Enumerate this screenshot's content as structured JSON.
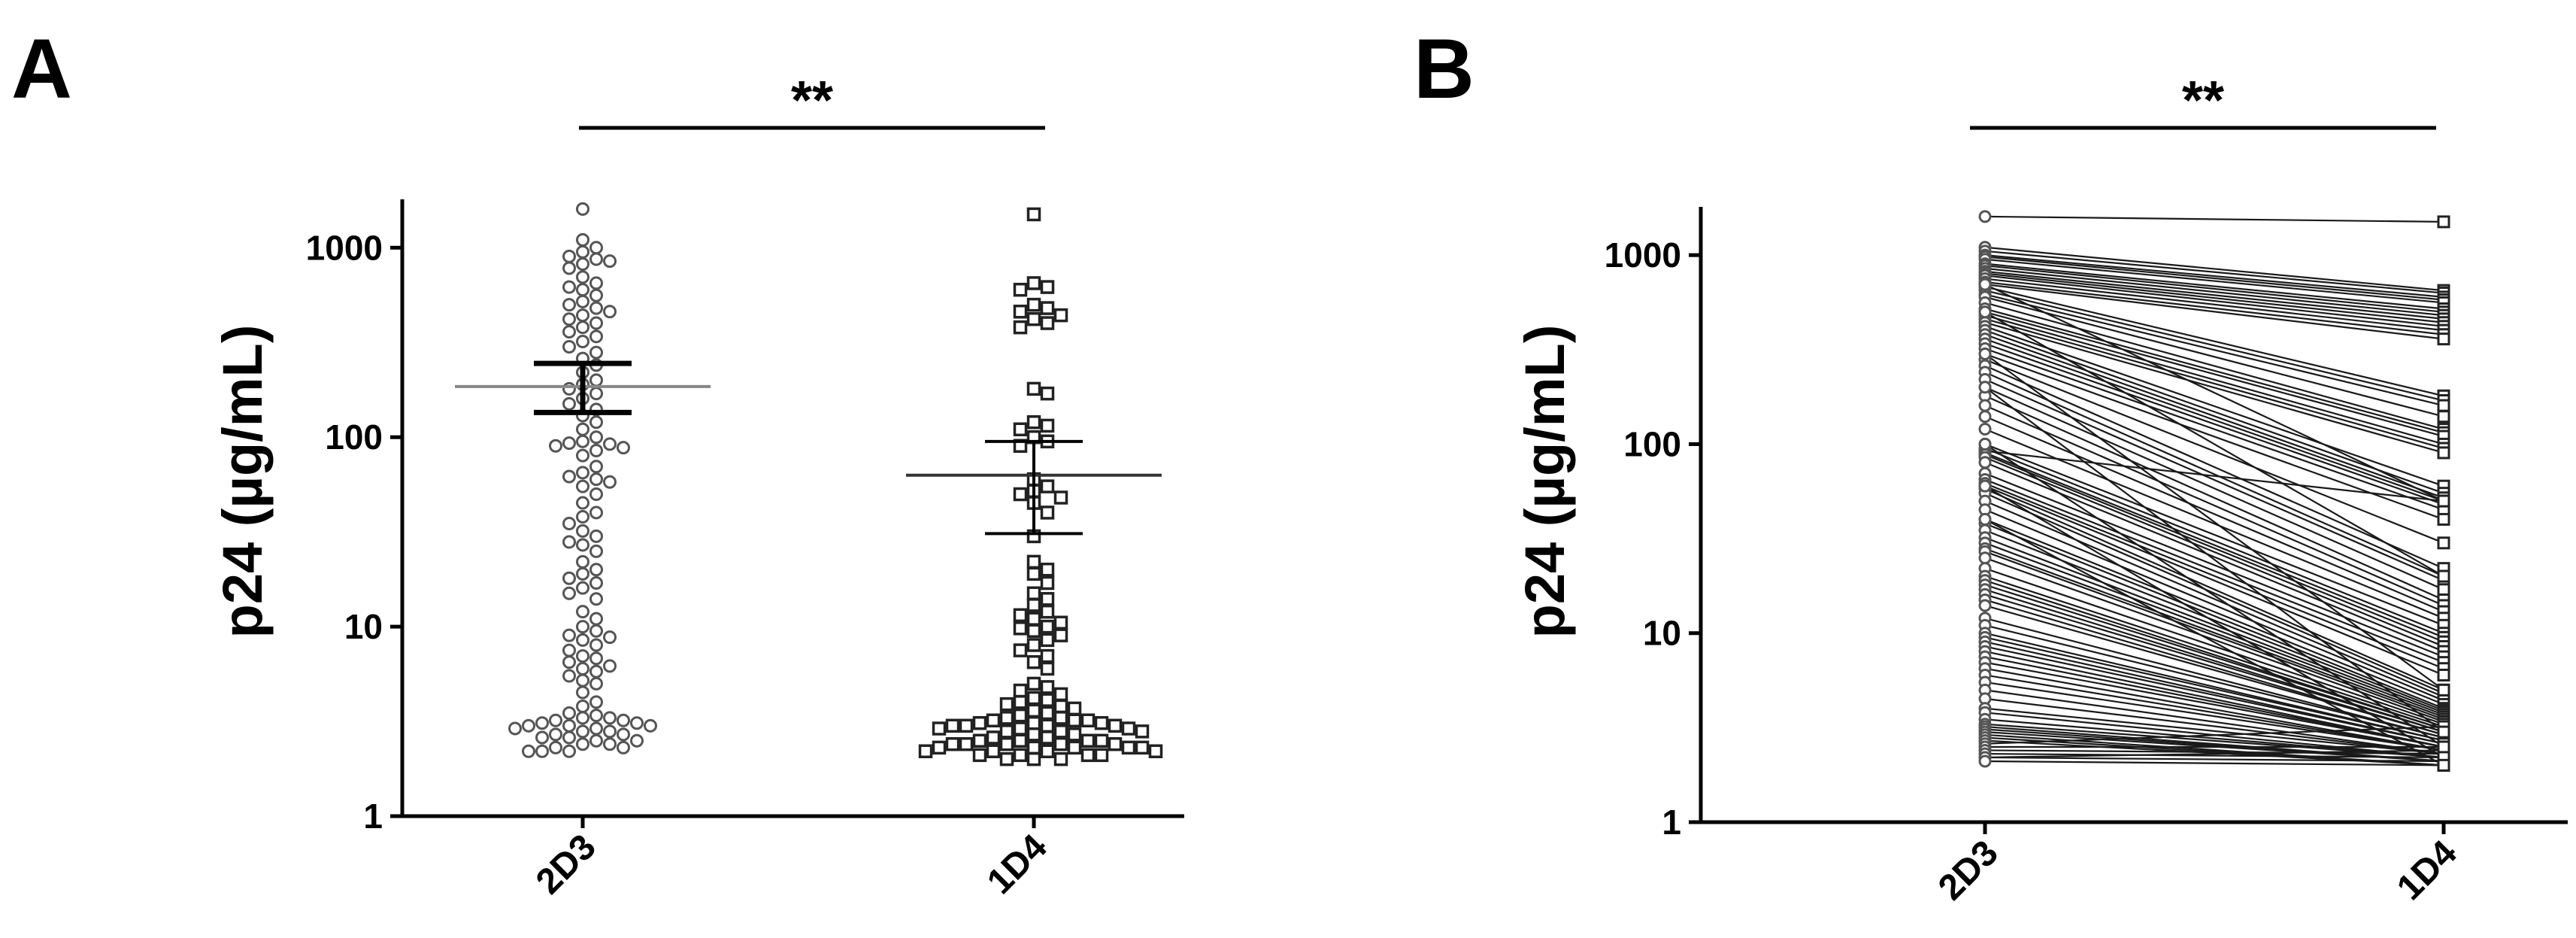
{
  "chart_data": [
    {
      "panel": "A",
      "type": "scatter",
      "ylabel": "p24 (µg/mL)",
      "yscale": "log",
      "ylim": [
        1,
        1800
      ],
      "yticks": [
        "1",
        "10",
        "100",
        "1000"
      ],
      "categories": [
        "2D3",
        "1D4"
      ],
      "significance": "**",
      "groups": [
        {
          "name": "2D3",
          "marker": "circle",
          "mean": 185,
          "sem": [
            135,
            245
          ],
          "values": [
            1600,
            1100,
            1000,
            950,
            900,
            870,
            850,
            820,
            780,
            700,
            650,
            620,
            600,
            560,
            520,
            500,
            480,
            460,
            440,
            420,
            400,
            380,
            360,
            340,
            320,
            300,
            280,
            260,
            240,
            220,
            200,
            190,
            180,
            170,
            160,
            150,
            140,
            130,
            120,
            110,
            100,
            95,
            93,
            92,
            90,
            88,
            85,
            80,
            70,
            65,
            62,
            60,
            58,
            55,
            50,
            45,
            40,
            38,
            35,
            32,
            30,
            28,
            27,
            25,
            22,
            20,
            19,
            18,
            17,
            16,
            15,
            14,
            12,
            11,
            10,
            9.5,
            9,
            8.8,
            8.5,
            8,
            7.5,
            7,
            6.8,
            6.5,
            6.2,
            6,
            5.8,
            5.5,
            5.2,
            5,
            4.5,
            4,
            3.8,
            3.5,
            3.4,
            3.3,
            3.3,
            3.2,
            3.2,
            3.1,
            3.1,
            3.0,
            3.0,
            3.0,
            2.9,
            2.9,
            2.8,
            2.8,
            2.7,
            2.7,
            2.6,
            2.6,
            2.5,
            2.5,
            2.4,
            2.4,
            2.3,
            2.3,
            2.2,
            2.2,
            2.2
          ]
        },
        {
          "name": "1D4",
          "marker": "square",
          "mean": 63,
          "sem": [
            31,
            95
          ],
          "values": [
            1500,
            650,
            620,
            600,
            500,
            480,
            460,
            440,
            420,
            400,
            380,
            180,
            170,
            120,
            115,
            110,
            100,
            95,
            90,
            60,
            55,
            52,
            50,
            48,
            45,
            40,
            30,
            22,
            20,
            19,
            17,
            15,
            14,
            13,
            12,
            11.5,
            11,
            10.5,
            10,
            9.8,
            9.5,
            9,
            8.5,
            8,
            7.5,
            7,
            6.5,
            6,
            5,
            4.8,
            4.6,
            4.4,
            4.2,
            4.1,
            4.0,
            3.9,
            3.8,
            3.7,
            3.6,
            3.5,
            3.4,
            3.3,
            3.3,
            3.2,
            3.2,
            3.2,
            3.1,
            3.1,
            3.1,
            3.0,
            3.0,
            3.0,
            3.0,
            2.9,
            2.9,
            2.9,
            2.8,
            2.8,
            2.8,
            2.7,
            2.7,
            2.6,
            2.6,
            2.5,
            2.5,
            2.5,
            2.5,
            2.4,
            2.4,
            2.4,
            2.4,
            2.4,
            2.3,
            2.3,
            2.3,
            2.3,
            2.3,
            2.2,
            2.2,
            2.2,
            2.2,
            2.1,
            2.1,
            2.1,
            2.1,
            2.0,
            2.0,
            2.0
          ]
        }
      ]
    },
    {
      "panel": "B",
      "type": "line",
      "ylabel": "p24 (µg/mL)",
      "yscale": "log",
      "ylim": [
        1,
        1800
      ],
      "yticks": [
        "1",
        "10",
        "100",
        "1000"
      ],
      "categories": [
        "2D3",
        "1D4"
      ],
      "significance": "**",
      "pairs": [
        [
          1600,
          1500
        ],
        [
          1100,
          650
        ],
        [
          1050,
          630
        ],
        [
          1000,
          600
        ],
        [
          980,
          580
        ],
        [
          950,
          560
        ],
        [
          900,
          520
        ],
        [
          880,
          500
        ],
        [
          850,
          480
        ],
        [
          820,
          460
        ],
        [
          800,
          440
        ],
        [
          780,
          420
        ],
        [
          750,
          400
        ],
        [
          720,
          380
        ],
        [
          700,
          360
        ],
        [
          680,
          180
        ],
        [
          650,
          170
        ],
        [
          620,
          160
        ],
        [
          600,
          140
        ],
        [
          560,
          120
        ],
        [
          520,
          115
        ],
        [
          500,
          110
        ],
        [
          480,
          100
        ],
        [
          460,
          95
        ],
        [
          440,
          90
        ],
        [
          420,
          60
        ],
        [
          400,
          55
        ],
        [
          380,
          52
        ],
        [
          360,
          50
        ],
        [
          340,
          48
        ],
        [
          320,
          45
        ],
        [
          300,
          40
        ],
        [
          280,
          30
        ],
        [
          260,
          22
        ],
        [
          240,
          20
        ],
        [
          220,
          19
        ],
        [
          200,
          17
        ],
        [
          180,
          15
        ],
        [
          160,
          14
        ],
        [
          140,
          13
        ],
        [
          120,
          12
        ],
        [
          100,
          11
        ],
        [
          95,
          10
        ],
        [
          92,
          50
        ],
        [
          90,
          9.5
        ],
        [
          88,
          9
        ],
        [
          85,
          8.5
        ],
        [
          80,
          8
        ],
        [
          70,
          7.5
        ],
        [
          65,
          7
        ],
        [
          62,
          6.5
        ],
        [
          60,
          6
        ],
        [
          58,
          5
        ],
        [
          55,
          4.8
        ],
        [
          50,
          4.6
        ],
        [
          45,
          4.4
        ],
        [
          40,
          4.2
        ],
        [
          38,
          4.0
        ],
        [
          35,
          3.9
        ],
        [
          32,
          3.8
        ],
        [
          30,
          3.7
        ],
        [
          28,
          3.6
        ],
        [
          27,
          3.5
        ],
        [
          25,
          3.4
        ],
        [
          22,
          3.3
        ],
        [
          20,
          3.2
        ],
        [
          19,
          3.1
        ],
        [
          18,
          3.1
        ],
        [
          17,
          3.0
        ],
        [
          16,
          3.0
        ],
        [
          15,
          2.9
        ],
        [
          14,
          2.9
        ],
        [
          12,
          2.8
        ],
        [
          11,
          2.8
        ],
        [
          10,
          2.7
        ],
        [
          9.5,
          2.7
        ],
        [
          9,
          2.6
        ],
        [
          8.5,
          2.6
        ],
        [
          8,
          2.5
        ],
        [
          7.5,
          2.5
        ],
        [
          7,
          2.5
        ],
        [
          6.5,
          2.4
        ],
        [
          6,
          2.4
        ],
        [
          5.5,
          2.4
        ],
        [
          5,
          2.3
        ],
        [
          4.5,
          2.3
        ],
        [
          4,
          2.3
        ],
        [
          3.8,
          2.2
        ],
        [
          3.5,
          2.2
        ],
        [
          3.3,
          2.2
        ],
        [
          3.2,
          2.1
        ],
        [
          3.1,
          2.1
        ],
        [
          3.0,
          2.1
        ],
        [
          2.9,
          2.0
        ],
        [
          2.8,
          2.0
        ],
        [
          2.7,
          2.0
        ],
        [
          2.6,
          3.2
        ],
        [
          2.5,
          2.5
        ],
        [
          2.4,
          2.3
        ],
        [
          2.3,
          2.2
        ],
        [
          2.2,
          2.4
        ],
        [
          2.2,
          2.1
        ],
        [
          2.1,
          2.0
        ],
        [
          700,
          50
        ],
        [
          500,
          20
        ],
        [
          300,
          5
        ],
        [
          200,
          3
        ],
        [
          100,
          2.5
        ],
        [
          60,
          2.2
        ],
        [
          40,
          2.0
        ]
      ]
    }
  ]
}
